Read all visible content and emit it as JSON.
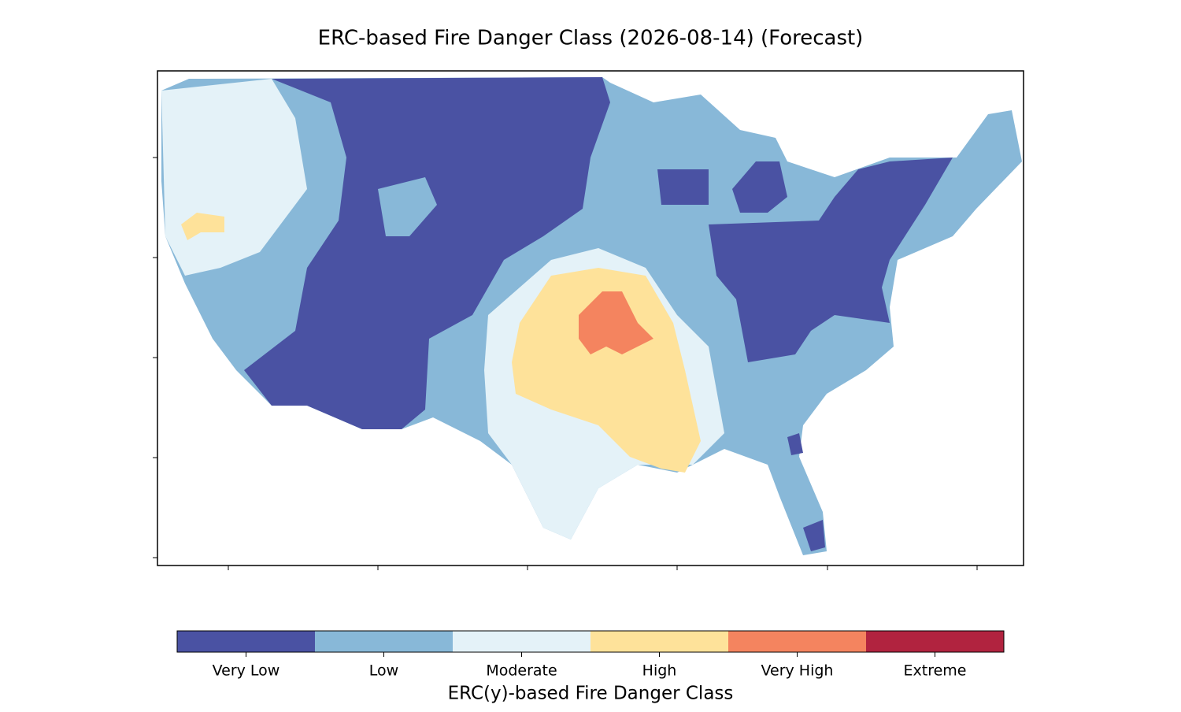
{
  "title": "ERC-based Fire Danger Class (2026-08-14) (Forecast)",
  "colorbar": {
    "label": "ERC(y)-based Fire Danger Class",
    "classes": [
      {
        "name": "Very Low",
        "color": "#4a52a3"
      },
      {
        "name": "Low",
        "color": "#88b8d8"
      },
      {
        "name": "Moderate",
        "color": "#e4f2f8"
      },
      {
        "name": "High",
        "color": "#fee29a"
      },
      {
        "name": "Very High",
        "color": "#f4845f"
      },
      {
        "name": "Extreme",
        "color": "#b1233f"
      }
    ]
  }
}
